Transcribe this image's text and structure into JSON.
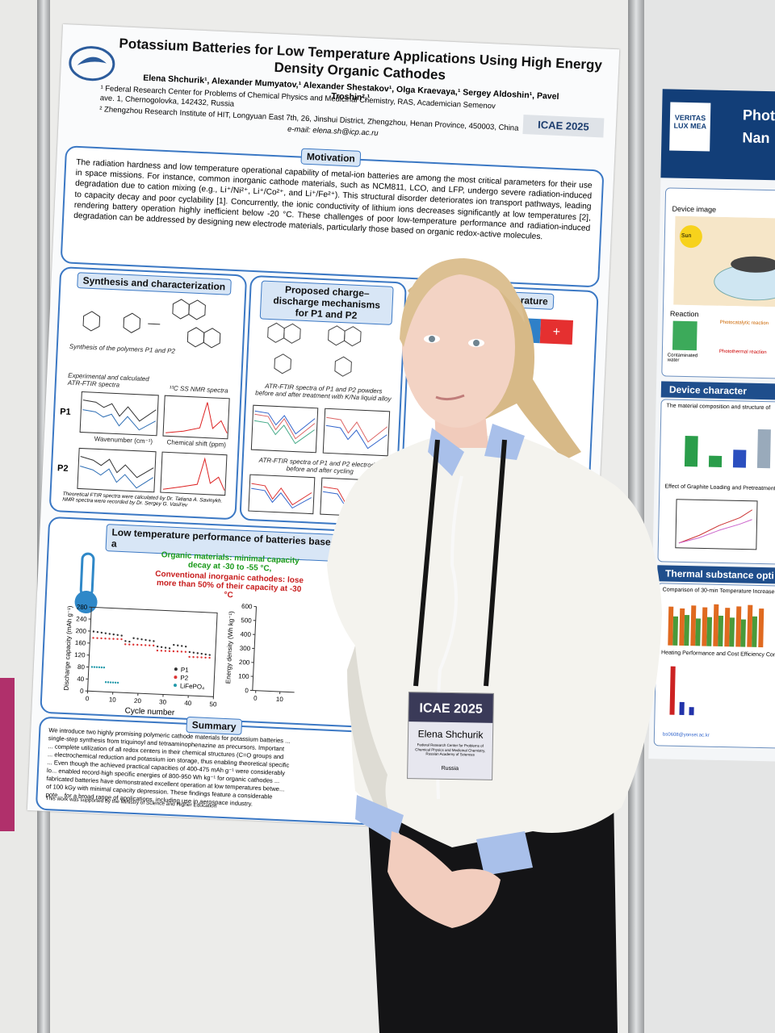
{
  "poster": {
    "title": "Potassium Batteries for Low Temperature Applications Using High Energy Density Organic Cathodes",
    "authors": "Elena Shchurik¹, Alexander Mumyatov,¹ Alexander Shestakov¹, Olga Kraevaya,¹ Sergey Aldoshin¹, Pavel Troshin²,¹",
    "affiliation_1": "¹ Federal Research Center for Problems of Chemical Physics and Medicinal Chemistry, RAS, Academician Semenov ave. 1, Chernogolovka, 142432, Russia",
    "affiliation_2": "² Zhengzhou Research Institute of HIT, Longyuan East 7th, 26, Jinshui District, Zhengzhou, Henan Province, 450003, China",
    "email": "e-mail: elena.sh@icp.ac.ru",
    "logo": "ICAE 2025",
    "motivation_heading": "Motivation",
    "motivation_text": "The radiation hardness and low temperature operational capability of metal-ion batteries are among the most critical parameters for their use in space missions. For instance, common inorganic cathode materials, such as NCM811, LCO, and LFP, undergo severe radiation-induced degradation due to cation mixing (e.g., Li⁺/Ni²⁺, Li⁺/Co²⁺, and Li⁺/Fe²⁺). This structural disorder deteriorates ion transport pathways, leading to capacity decay and poor cyclability [1]. Concurrently, the ionic conductivity of lithium ions decreases significantly at low temperatures [2], rendering battery operation highly inefficient below -20 °C. These challenges of poor low-temperature performance and radiation-induced degradation can be addressed by designing new electrode materials, particularly those based on organic redox-active molecules.",
    "synthesis_heading": "Synthesis and characterization",
    "synthesis_caption": "Synthesis of the polymers P1 and P2",
    "ftir_caption": "Experimental and calculated ATR-FTIR spectra",
    "nmr_caption": "¹³C SS NMR spectra",
    "label_p1": "P1",
    "label_p2": "P2",
    "x_wavenumber": "Wavenumber (cm⁻¹)",
    "x_shift": "Chemical shift (ppm)",
    "spectra_note": "Theoretical FTIR spectra were calculated by Dr. Tatiana A. Savinykh. NMR spectra were recorded by Dr. Sergey G. Vasil'ev",
    "mechanism_heading": "Proposed charge–discharge mechanisms for P1 and P2",
    "mechanism_caption_1": "ATR-FTIR spectra of P1 and P2 powders before and after treatment with K/Na liquid alloy",
    "mechanism_caption_2": "ATR-FTIR spectra of P1 and P2 electrodes before and after cycling",
    "room_heading": "room temperature",
    "low_temp_heading": "Low temperature performance of batteries based on P1 a",
    "organic_note": "Organic materials: minimal capacity decay at -30 to -55 °C,",
    "inorganic_note": "Conventional inorganic cathodes: lose more than 50% of their capacity at -30 °C",
    "chart_y_label": "Discharge capacity (mAh g⁻¹)",
    "chart_x_label": "Cycle number",
    "chart_y_ticks": [
      0,
      40,
      80,
      120,
      160,
      200,
      240,
      280
    ],
    "chart_x_ticks": [
      0,
      10,
      20,
      30,
      40,
      50
    ],
    "legend": [
      "P1",
      "P2",
      "LiFePO₄"
    ],
    "chart2_y_label": "Energy density (Wh kg⁻¹)",
    "chart2_y_ticks": [
      0,
      100,
      200,
      300,
      400,
      500,
      600
    ],
    "chart2_x_ticks": [
      0,
      10
    ],
    "summary_heading": "Summary",
    "summary_text": "We introduce two highly promising polymeric cathode materials for potassium batteries ... single-step synthesis from triquinoyl and tetraaminophenazine as precursors. Important ... complete utilization of all redox centers in their chemical structures (C=O groups and ... electrochemical reduction and potassium ion storage, thus enabling theoretical specific ... Even though the achieved practical capacities of 400-475 mAh g⁻¹ were considerably lo... enabled record-high specific energies of 800-950 Wh kg⁻¹ for organic cathodes ... fabricated batteries have demonstrated excellent operation at low temperatures betwe... of 100 kGy with minimal capacity depression. These findings feature a considerable pote... for a broad range of applications, including use in aerospace industry.",
    "footer": "This work was supported by the Ministry of Science and Higher Education"
  },
  "right_poster": {
    "title_1": "Photo",
    "title_2": "Nan",
    "seal": "VERITAS LUX MEA",
    "device_image": "Device image",
    "sun": "Sun",
    "reaction": "Reaction",
    "contaminated": "Contaminated water",
    "photocatalytic": "Photocatalytic reaction",
    "photothermal": "Photothermal reaction",
    "device_heading": "Device character",
    "composition": "The material composition and structure of",
    "effect": "Effect of Graphite Loading and Pretreatment",
    "thermal_heading": "Thermal substance opti",
    "comparison": "Comparison of 30-min Temperature Increase",
    "heating": "Heating Performance and Cost Efficiency Comp",
    "email": "bs0608@yonsei.ac.kr"
  },
  "badge": {
    "event": "ICAE 2025",
    "name": "Elena Shchurik",
    "affiliation": "Federal Research Center for Problems of Chemical Physics and Medicinal Chemistry, Russian Academy of Sciences",
    "country": "Russia"
  }
}
